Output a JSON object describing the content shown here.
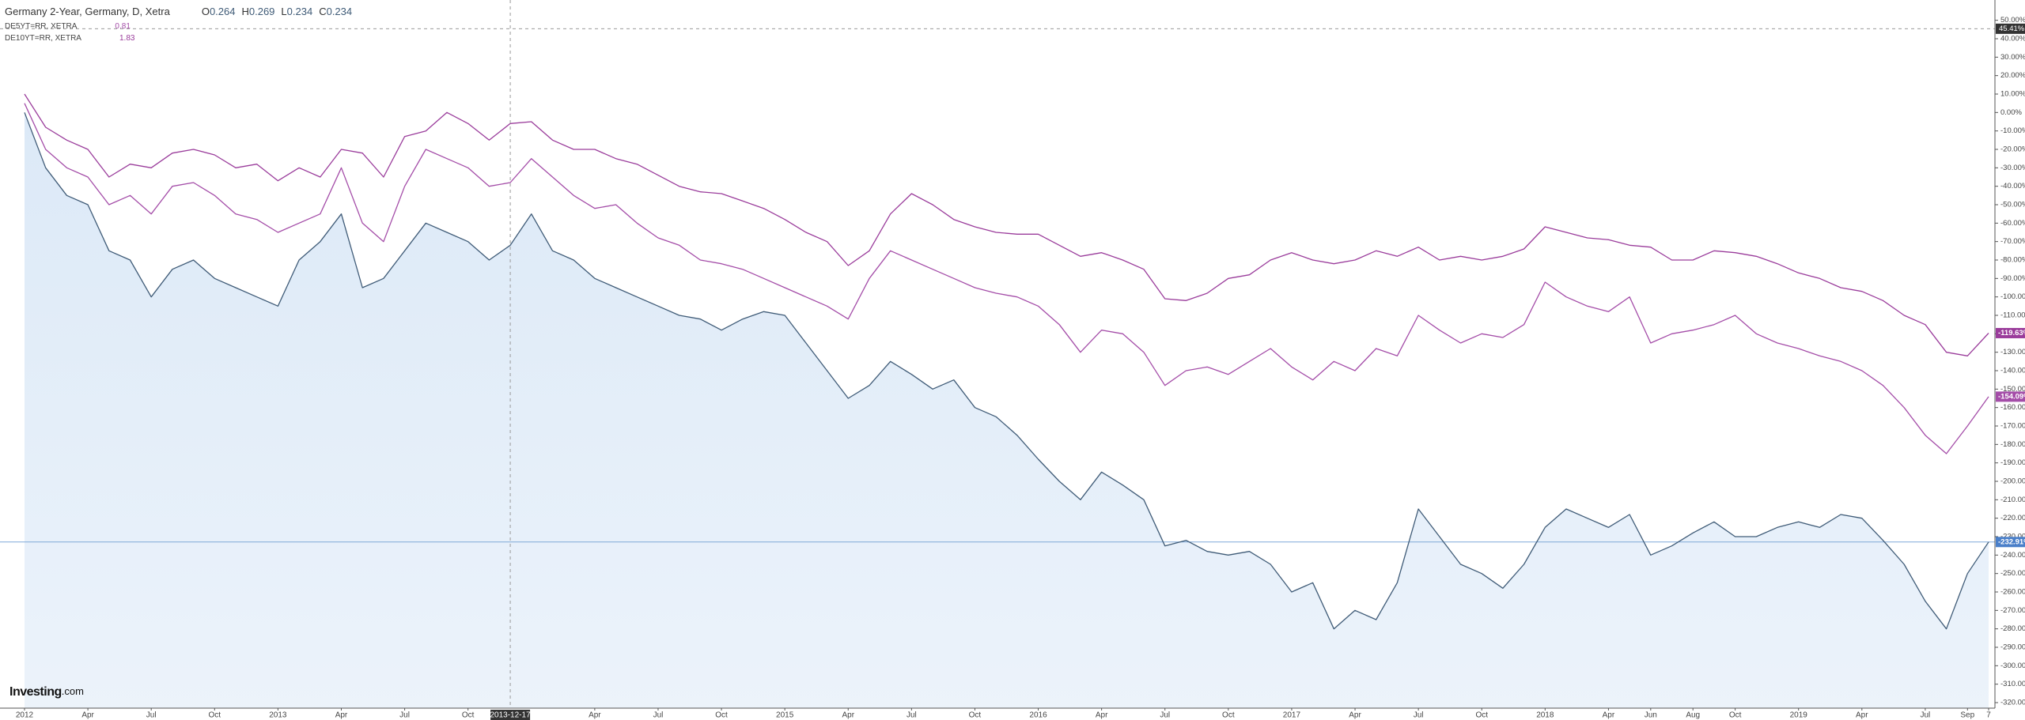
{
  "chart_data": {
    "type": "line",
    "categories": [
      "2012",
      null,
      null,
      "Apr",
      null,
      null,
      "Jul",
      null,
      null,
      "Oct",
      null,
      null,
      "2013",
      null,
      null,
      "Apr",
      null,
      null,
      "Jul",
      null,
      null,
      "Oct",
      null,
      "2013-12-17",
      null,
      null,
      null,
      "Apr",
      null,
      null,
      "Jul",
      null,
      null,
      "Oct",
      null,
      null,
      "2015",
      null,
      null,
      "Apr",
      null,
      null,
      "Jul",
      null,
      null,
      "Oct",
      null,
      null,
      "2016",
      null,
      null,
      "Apr",
      null,
      null,
      "Jul",
      null,
      null,
      "Oct",
      null,
      null,
      "2017",
      null,
      null,
      "Apr",
      null,
      null,
      "Jul",
      null,
      null,
      "Oct",
      null,
      null,
      "2018",
      null,
      null,
      "Apr",
      null,
      "Jun",
      null,
      "Aug",
      null,
      "Oct",
      null,
      null,
      "2019",
      null,
      null,
      "Apr",
      null,
      null,
      "Jul",
      null,
      "Sep",
      "7"
    ],
    "series": [
      {
        "name": "Germany 2-Year, Germany, D, Xetra",
        "color": "#3f5b77",
        "fill": "#dce9f7",
        "ohlc": [
          {
            "key": "O",
            "value": 0.264
          },
          {
            "key": "H",
            "value": 0.269
          },
          {
            "key": "L",
            "value": 0.234
          },
          {
            "key": "C",
            "value": 0.234
          }
        ],
        "last_label": "-232.91%",
        "values": [
          0,
          -30,
          -45,
          -50,
          -75,
          -80,
          -100,
          -85,
          -80,
          -90,
          -95,
          -100,
          -105,
          -80,
          -70,
          -55,
          -95,
          -90,
          -75,
          -60,
          -65,
          -70,
          -80,
          -72,
          -55,
          -75,
          -80,
          -90,
          -95,
          -100,
          -105,
          -110,
          -112,
          -118,
          -112,
          -108,
          -110,
          -125,
          -140,
          -155,
          -148,
          -135,
          -142,
          -150,
          -145,
          -160,
          -165,
          -175,
          -188,
          -200,
          -210,
          -195,
          -202,
          -210,
          -235,
          -232,
          -238,
          -240,
          -238,
          -245,
          -260,
          -255,
          -280,
          -270,
          -275,
          -255,
          -215,
          -230,
          -245,
          -250,
          -258,
          -245,
          -225,
          -215,
          -220,
          -225,
          -218,
          -240,
          -235,
          -228,
          -222,
          -230,
          -230,
          -225,
          -222,
          -225,
          -218,
          -220,
          -232,
          -245,
          -265,
          -280,
          -250,
          -232.91
        ]
      },
      {
        "name": "DE5YT=RR, XETRA",
        "color": "#a44da8",
        "legend_value": 0.81,
        "last_label": "-154.09%",
        "values": [
          5,
          -20,
          -30,
          -35,
          -50,
          -45,
          -55,
          -40,
          -38,
          -45,
          -55,
          -58,
          -65,
          -60,
          -55,
          -30,
          -60,
          -70,
          -40,
          -20,
          -25,
          -30,
          -40,
          -38,
          -25,
          -35,
          -45,
          -52,
          -50,
          -60,
          -68,
          -72,
          -80,
          -82,
          -85,
          -90,
          -95,
          -100,
          -105,
          -112,
          -90,
          -75,
          -80,
          -85,
          -90,
          -95,
          -98,
          -100,
          -105,
          -115,
          -130,
          -118,
          -120,
          -130,
          -148,
          -140,
          -138,
          -142,
          -135,
          -128,
          -138,
          -145,
          -135,
          -140,
          -128,
          -132,
          -110,
          -118,
          -125,
          -120,
          -122,
          -115,
          -92,
          -100,
          -105,
          -108,
          -100,
          -125,
          -120,
          -118,
          -115,
          -110,
          -120,
          -125,
          -128,
          -132,
          -135,
          -140,
          -148,
          -160,
          -175,
          -185,
          -170,
          -154.09
        ]
      },
      {
        "name": "DE10YT=RR, XETRA",
        "color": "#9a3c9b",
        "legend_value": 1.83,
        "last_label": "-119.63%",
        "values": [
          10,
          -8,
          -15,
          -20,
          -35,
          -28,
          -30,
          -22,
          -20,
          -23,
          -30,
          -28,
          -37,
          -30,
          -35,
          -20,
          -22,
          -35,
          -13,
          -10,
          0,
          -6,
          -15,
          -6,
          -5,
          -15,
          -20,
          -20,
          -25,
          -28,
          -34,
          -40,
          -43,
          -44,
          -48,
          -52,
          -58,
          -65,
          -70,
          -83,
          -75,
          -55,
          -44,
          -50,
          -58,
          -62,
          -65,
          -66,
          -66,
          -72,
          -78,
          -76,
          -80,
          -85,
          -101,
          -102,
          -98,
          -90,
          -88,
          -80,
          -76,
          -80,
          -82,
          -80,
          -75,
          -78,
          -73,
          -80,
          -78,
          -80,
          -78,
          -74,
          -62,
          -65,
          -68,
          -69,
          -72,
          -73,
          -80,
          -80,
          -75,
          -76,
          -78,
          -82,
          -87,
          -90,
          -95,
          -97,
          -102,
          -110,
          -115,
          -130,
          -132,
          -119.63
        ]
      }
    ],
    "ylim": [
      -323,
      61
    ],
    "yticks": [
      {
        "value": 50,
        "label": "50.00%"
      },
      {
        "value": 40,
        "label": "40.00%"
      },
      {
        "value": 30,
        "label": "30.00%"
      },
      {
        "value": 20,
        "label": "20.00%"
      },
      {
        "value": 10,
        "label": "10.00%"
      },
      {
        "value": 0,
        "label": "0.00%"
      },
      {
        "value": -10,
        "label": "-10.00%"
      },
      {
        "value": -20,
        "label": "-20.00%"
      },
      {
        "value": -30,
        "label": "-30.00%"
      },
      {
        "value": -40,
        "label": "-40.00%"
      },
      {
        "value": -50,
        "label": "-50.00%"
      },
      {
        "value": -60,
        "label": "-60.00%"
      },
      {
        "value": -70,
        "label": "-70.00%"
      },
      {
        "value": -80,
        "label": "-80.00%"
      },
      {
        "value": -90,
        "label": "-90.00%"
      },
      {
        "value": -100,
        "label": "-100.00%"
      },
      {
        "value": -110,
        "label": "-110.00%"
      },
      {
        "value": -120,
        "label": "-120.00%"
      },
      {
        "value": -130,
        "label": "-130.00%"
      },
      {
        "value": -140,
        "label": "-140.00%"
      },
      {
        "value": -150,
        "label": "-150.00%"
      },
      {
        "value": -160,
        "label": "-160.00%"
      },
      {
        "value": -170,
        "label": "-170.00%"
      },
      {
        "value": -180,
        "label": "-180.00%"
      },
      {
        "value": -190,
        "label": "-190.00%"
      },
      {
        "value": -200,
        "label": "-200.00%"
      },
      {
        "value": -210,
        "label": "-210.00%"
      },
      {
        "value": -220,
        "label": "-220.00%"
      },
      {
        "value": -230,
        "label": "-230.00%"
      },
      {
        "value": -240,
        "label": "-240.00%"
      },
      {
        "value": -250,
        "label": "-250.00%"
      },
      {
        "value": -260,
        "label": "-260.00%"
      },
      {
        "value": -270,
        "label": "-270.00%"
      },
      {
        "value": -280,
        "label": "-280.00%"
      },
      {
        "value": -290,
        "label": "-290.00%"
      },
      {
        "value": -300,
        "label": "-300.00%"
      },
      {
        "value": -310,
        "label": "-310.00%"
      },
      {
        "value": -320,
        "label": "-320.00%"
      }
    ],
    "crosshair": {
      "x": "2013-12-17",
      "y": {
        "value": 45.41,
        "label": "45.41%"
      }
    },
    "brand": [
      "Investing",
      ".com"
    ]
  }
}
